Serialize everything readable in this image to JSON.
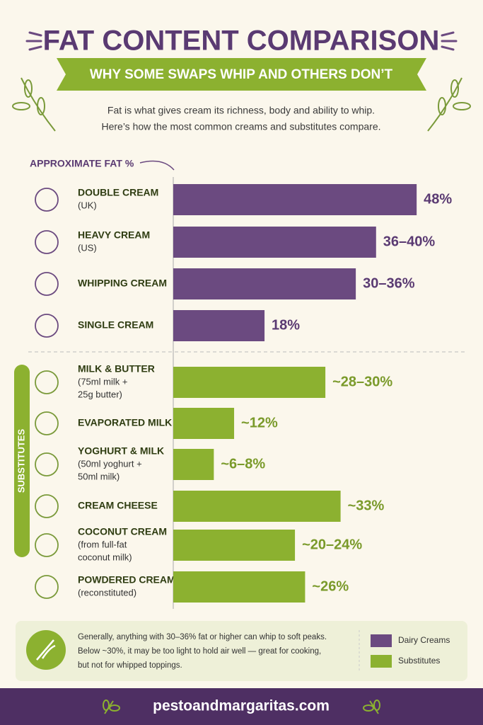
{
  "header": {
    "title": "FAT CONTENT COMPARISON",
    "subtitle": "WHY SOME SWAPS WHIP AND OTHERS DON’T",
    "intro": [
      "Fat is what gives cream its richness, body and ability to whip.",
      "Here’s how the most common creams and substitutes compare."
    ]
  },
  "chart_data": {
    "type": "bar",
    "orientation": "horizontal",
    "axis_label": "APPROXIMATE FAT %",
    "group_label": "SUBSTITUTES",
    "xlim": [
      0,
      50
    ],
    "series": [
      {
        "name": "Dairy Creams",
        "color": "#6b4a80",
        "categories": [
          "DOUBLE CREAM",
          "HEAVY CREAM",
          "WHIPPING CREAM",
          "SINGLE CREAM"
        ],
        "notes": [
          [
            "(UK)"
          ],
          [
            "(US)"
          ],
          [],
          []
        ],
        "values": [
          48,
          40,
          36,
          18
        ],
        "value_labels": [
          "48%",
          "36–40%",
          "30–36%",
          "18%"
        ]
      },
      {
        "name": "Substitutes",
        "color": "#8cb130",
        "categories": [
          "MILK & BUTTER",
          "EVAPORATED MILK",
          "YOGHURT & MILK",
          "CREAM CHEESE",
          "COCONUT CREAM",
          "POWDERED CREAM"
        ],
        "notes": [
          [
            "(75ml milk +",
            "25g butter)"
          ],
          [],
          [
            "(50ml yoghurt +",
            "50ml milk)"
          ],
          [],
          [
            "(from full-fat",
            "coconut milk)"
          ],
          [
            "(reconstituted)"
          ]
        ],
        "values": [
          30,
          12,
          8,
          33,
          24,
          26
        ],
        "value_labels": [
          "~28–30%",
          "~12%",
          "~6–8%",
          "~33%",
          "~20–24%",
          "~26%"
        ]
      }
    ]
  },
  "note": [
    "Generally, anything with 30–36% fat or higher can whip to soft peaks.",
    "Below ~30%, it may be too light to hold air well — great for cooking,",
    "but not for whipped toppings."
  ],
  "footer": "pestoandmargaritas.com"
}
